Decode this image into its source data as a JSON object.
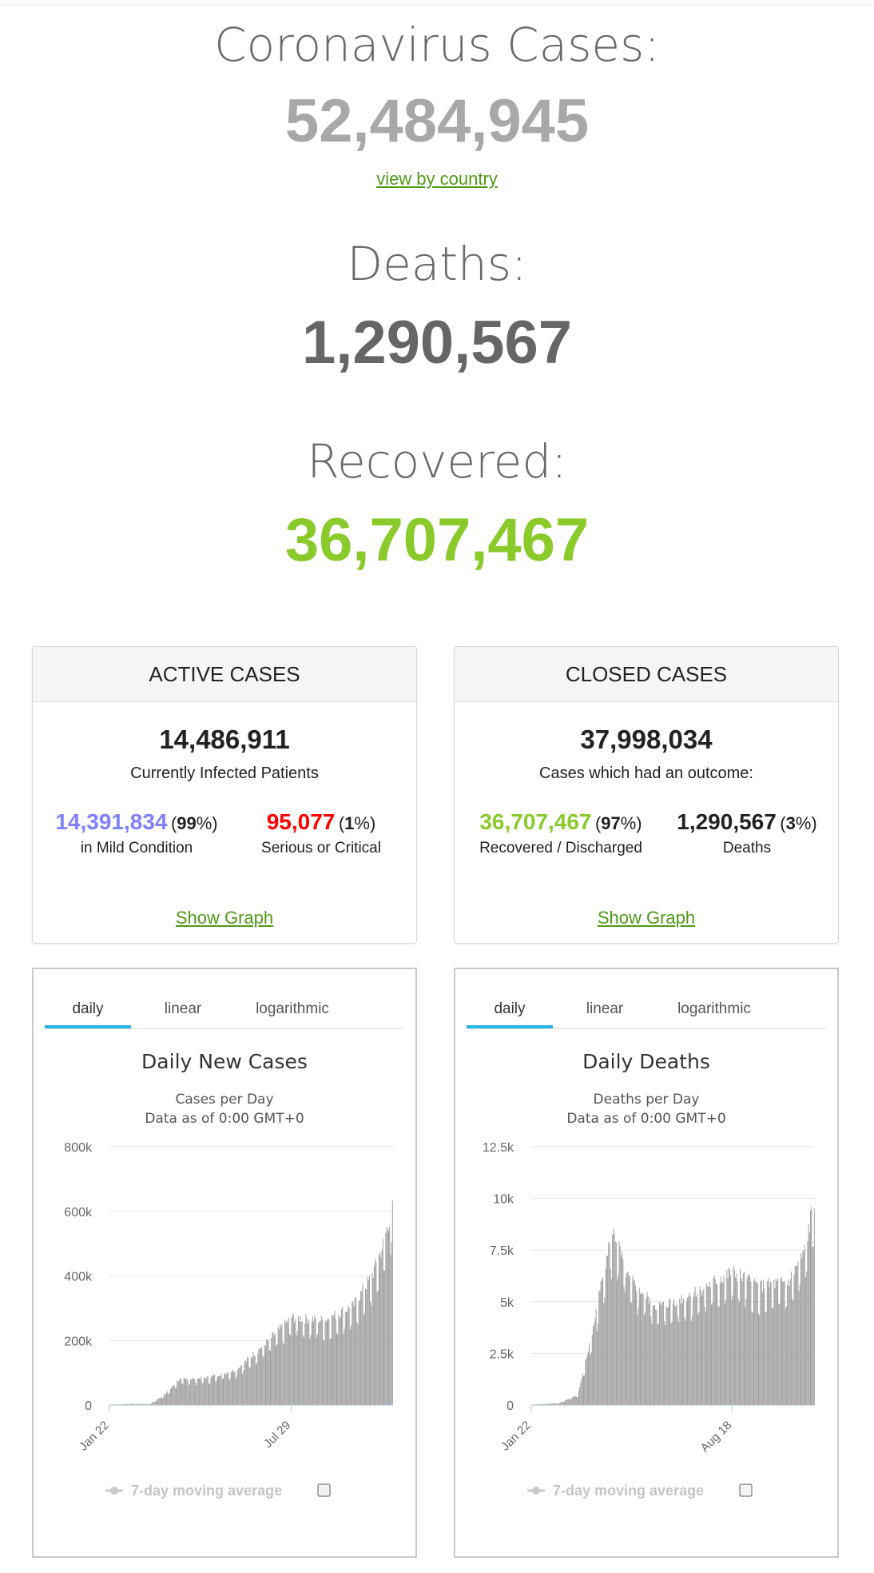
{
  "headline": {
    "cases_label": "Coronavirus Cases:",
    "cases_value": "52,484,945",
    "view_link": "view by country",
    "deaths_label": "Deaths:",
    "deaths_value": "1,290,567",
    "recovered_label": "Recovered:",
    "recovered_value": "36,707,467"
  },
  "colors": {
    "cases": "#a8a8a8",
    "deaths": "#666666",
    "recovered": "#8aca2b",
    "mild": "#8080ff",
    "critical": "#ff0000",
    "link": "#4f9a17",
    "tab_active": "#2bb4e6",
    "bars": "#a0a0a0"
  },
  "active": {
    "title": "ACTIVE CASES",
    "total": "14,486,911",
    "subtitle": "Currently Infected Patients",
    "mild_value": "14,391,834",
    "mild_pct_open": "(",
    "mild_pct": "99",
    "mild_pct_close": "%)",
    "mild_label": "in Mild Condition",
    "critical_value": "95,077",
    "critical_pct_open": "(",
    "critical_pct": "1",
    "critical_pct_close": "%)",
    "critical_label": "Serious or Critical",
    "show_graph": "Show Graph"
  },
  "closed": {
    "title": "CLOSED CASES",
    "total": "37,998,034",
    "subtitle": "Cases which had an outcome:",
    "recovered_value": "36,707,467",
    "recovered_pct_open": "(",
    "recovered_pct": "97",
    "recovered_pct_close": "%)",
    "recovered_label": "Recovered / Discharged",
    "deaths_value": "1,290,567",
    "deaths_pct_open": "(",
    "deaths_pct": "3",
    "deaths_pct_close": "%)",
    "deaths_label": "Deaths",
    "show_graph": "Show Graph"
  },
  "tabs": [
    "daily",
    "linear",
    "logarithmic"
  ],
  "legend_label": "7-day moving average",
  "chart_data": [
    {
      "type": "bar",
      "title": "Daily New Cases",
      "subtitle": "Cases per Day",
      "subtitle2": "Data as of 0:00 GMT+0",
      "x_tick_labels": [
        "Jan 22",
        "Jul 29"
      ],
      "y_ticks": [
        "0",
        "200k",
        "400k",
        "600k",
        "800k"
      ],
      "ylim": [
        0,
        800000
      ],
      "grid": true,
      "series": [
        {
          "keypoints": [
            {
              "x": "Jan 22",
              "y": 500
            },
            {
              "x": "Feb 12",
              "y": 4000
            },
            {
              "x": "Mar 4",
              "y": 3000
            },
            {
              "x": "Mar 20",
              "y": 35000
            },
            {
              "x": "Apr 3",
              "y": 80000
            },
            {
              "x": "May 1",
              "y": 85000
            },
            {
              "x": "Jun 1",
              "y": 110000
            },
            {
              "x": "Jul 1",
              "y": 190000
            },
            {
              "x": "Jul 29",
              "y": 275000
            },
            {
              "x": "Sep 1",
              "y": 265000
            },
            {
              "x": "Oct 1",
              "y": 310000
            },
            {
              "x": "Oct 20",
              "y": 400000
            },
            {
              "x": "Nov 1",
              "y": 500000
            },
            {
              "x": "Nov 11",
              "y": 620000
            }
          ]
        }
      ]
    },
    {
      "type": "bar",
      "title": "Daily Deaths",
      "subtitle": "Deaths per Day",
      "subtitle2": "Data as of 0:00 GMT+0",
      "x_tick_labels": [
        "Jan 22",
        "Aug 18"
      ],
      "y_ticks": [
        "0",
        "2.5k",
        "5k",
        "7.5k",
        "10k",
        "12.5k"
      ],
      "ylim": [
        0,
        12500
      ],
      "grid": true,
      "series": [
        {
          "keypoints": [
            {
              "x": "Jan 22",
              "y": 20
            },
            {
              "x": "Feb 20",
              "y": 100
            },
            {
              "x": "Mar 10",
              "y": 500
            },
            {
              "x": "Mar 25",
              "y": 3500
            },
            {
              "x": "Apr 10",
              "y": 7600
            },
            {
              "x": "Apr 17",
              "y": 8400
            },
            {
              "x": "May 1",
              "y": 6200
            },
            {
              "x": "Jun 1",
              "y": 4800
            },
            {
              "x": "Jul 1",
              "y": 5300
            },
            {
              "x": "Aug 18",
              "y": 6500
            },
            {
              "x": "Sep 15",
              "y": 5800
            },
            {
              "x": "Oct 15",
              "y": 6000
            },
            {
              "x": "Nov 1",
              "y": 7500
            },
            {
              "x": "Nov 11",
              "y": 10100
            }
          ]
        }
      ]
    }
  ]
}
